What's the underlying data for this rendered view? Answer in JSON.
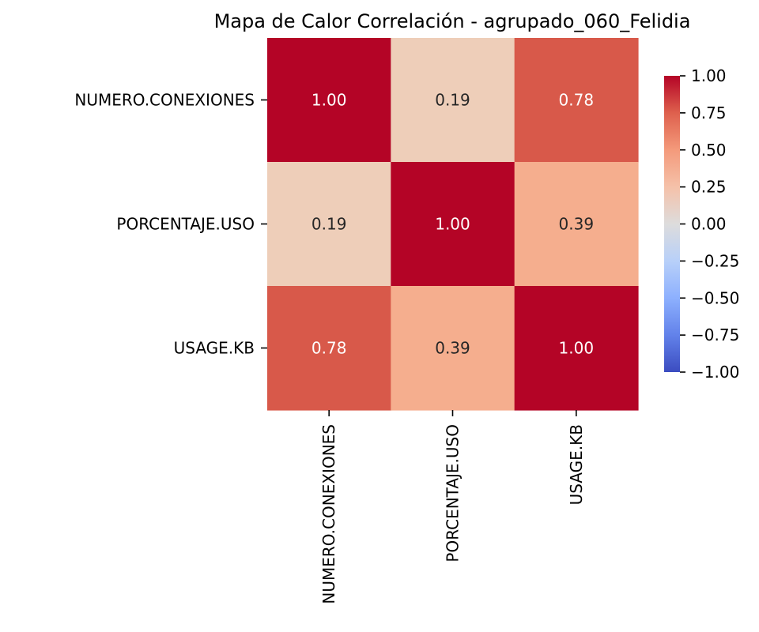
{
  "chart_data": {
    "type": "heatmap",
    "title": "Mapa de Calor Correlación - agrupado_060_Felidia",
    "xlabel": "",
    "ylabel": "",
    "x_categories": [
      "NUMERO.CONEXIONES",
      "PORCENTAJE.USO",
      "USAGE.KB"
    ],
    "y_categories": [
      "NUMERO.CONEXIONES",
      "PORCENTAJE.USO",
      "USAGE.KB"
    ],
    "values": [
      [
        1.0,
        0.19,
        0.78
      ],
      [
        0.19,
        1.0,
        0.39
      ],
      [
        0.78,
        0.39,
        1.0
      ]
    ],
    "value_format": "0.00",
    "colormap": "coolwarm",
    "vmin": -1.0,
    "vmax": 1.0,
    "colorbar_ticks": [
      "1.00",
      "0.75",
      "0.50",
      "0.25",
      "0.00",
      "−0.25",
      "−0.50",
      "−0.75",
      "−1.00"
    ],
    "colors": {
      "cell_1_00": "#b40426",
      "cell_0_78": "#d8594a",
      "cell_0_39": "#f5ae8e",
      "cell_0_19": "#eeceb9",
      "annotation_dark": "#262626",
      "annotation_light": "#ffffff"
    }
  }
}
